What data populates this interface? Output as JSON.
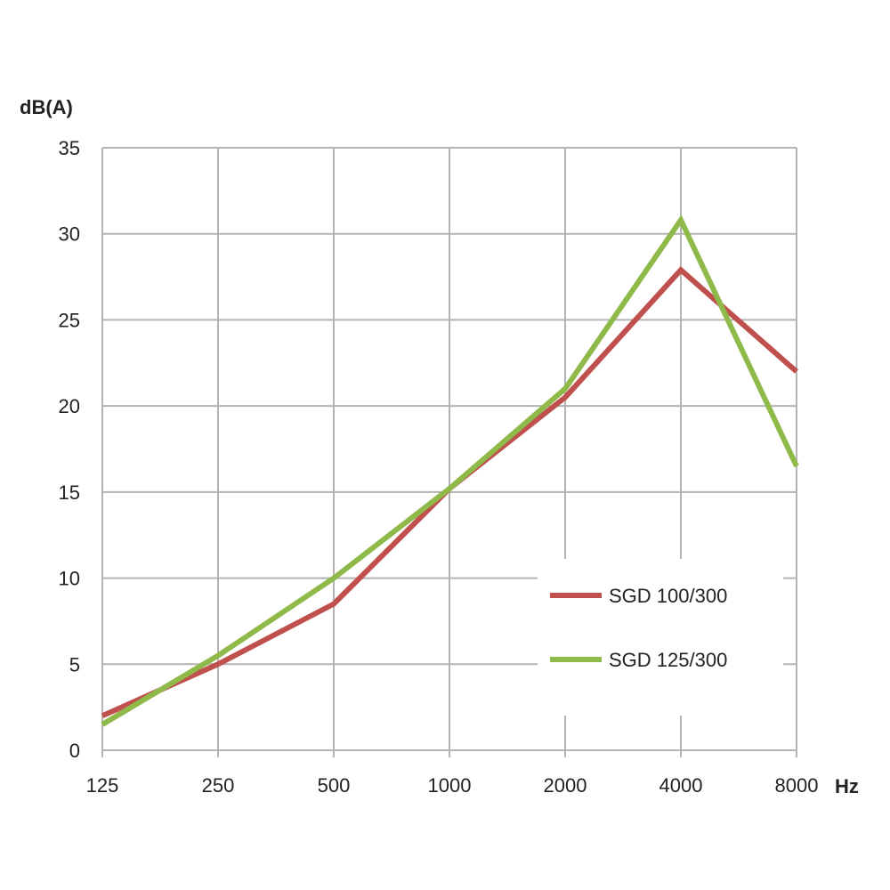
{
  "chart_data": {
    "type": "line",
    "ylabel": "dB(A)",
    "xlabel": "Hz",
    "categories": [
      "125",
      "250",
      "500",
      "1000",
      "2000",
      "4000",
      "8000"
    ],
    "ylim": [
      0,
      35
    ],
    "yticks": [
      0,
      5,
      10,
      15,
      20,
      25,
      30,
      35
    ],
    "grid": true,
    "legend_position": "bottom-right",
    "series": [
      {
        "name": "SGD 100/300",
        "color": "#c0504d",
        "values": [
          2,
          5,
          8.5,
          15.2,
          20.5,
          27.9,
          22
        ]
      },
      {
        "name": "SGD 125/300",
        "color": "#8fba4a",
        "values": [
          1.5,
          5.5,
          10,
          15.2,
          21,
          30.8,
          16.5
        ]
      }
    ]
  }
}
